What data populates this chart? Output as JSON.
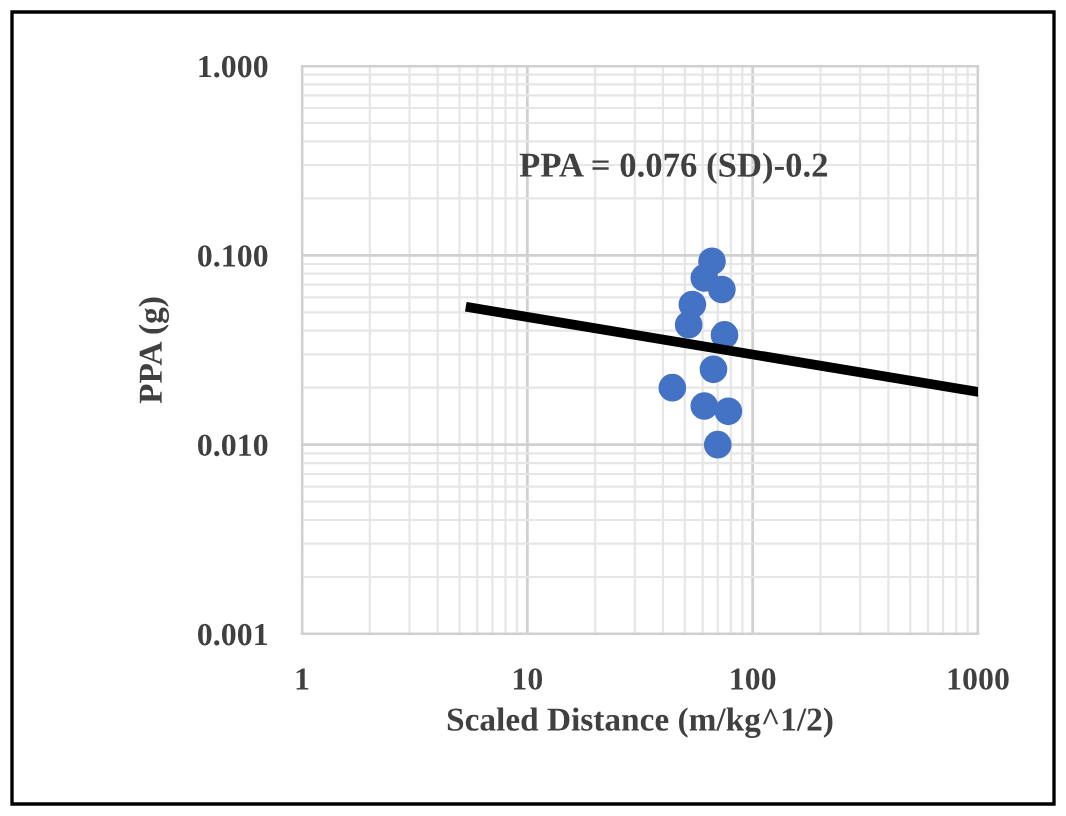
{
  "chart_data": {
    "type": "scatter",
    "xlabel": "Scaled Distance (m/kg^1/2)",
    "ylabel": "PPA (g)",
    "log": "xy",
    "grid": true,
    "legend": false,
    "xlim": [
      1,
      1000
    ],
    "xticks": [
      1,
      10,
      100,
      1000
    ],
    "ylim": [
      0.001,
      1
    ],
    "yticks": [
      {
        "value": 1,
        "label": "1.000"
      },
      {
        "value": 0.1,
        "label": "0.100"
      },
      {
        "value": 0.01,
        "label": "0.010"
      },
      {
        "value": 0.001,
        "label": "0.001"
      }
    ],
    "annotations": [
      "PPA = 0.076 (SD)-0.2"
    ],
    "series": [
      {
        "marker": "circle",
        "color": "#4472c4",
        "x": [
          66,
          61,
          73,
          54,
          52,
          75,
          67,
          44,
          61,
          78,
          70
        ],
        "values": [
          0.093,
          0.076,
          0.066,
          0.055,
          0.043,
          0.038,
          0.025,
          0.02,
          0.016,
          0.015,
          0.01
        ]
      },
      {
        "type": "line",
        "marker": "none",
        "color": "#000000",
        "x": [
          5.6,
          1000
        ],
        "values": [
          0.053,
          0.019
        ]
      }
    ]
  }
}
